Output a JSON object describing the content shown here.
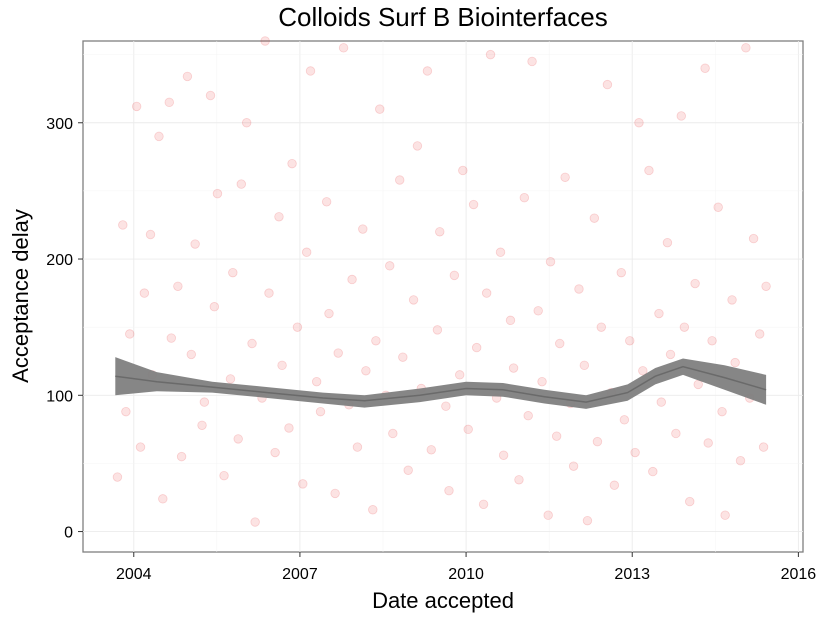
{
  "chart_data": {
    "type": "scatter",
    "title": "Colloids Surf B Biointerfaces",
    "xlabel": "Date accepted",
    "ylabel": "Acceptance delay",
    "x_ticks": [
      "2004",
      "2007",
      "2010",
      "2013",
      "2016"
    ],
    "y_ticks": [
      "0",
      "100",
      "200",
      "300"
    ],
    "xlim": [
      "2003-02-01",
      "2016-02-01"
    ],
    "ylim": [
      -15,
      360
    ],
    "grid": true,
    "point_color": "#e41a1c",
    "point_alpha": 0.12,
    "smooth_color": "#808080",
    "series": [
      {
        "name": "",
        "points": [
          [
            "2003-09-15",
            40
          ],
          [
            "2003-10-20",
            225
          ],
          [
            "2003-11-10",
            88
          ],
          [
            "2003-12-05",
            145
          ],
          [
            "2004-01-20",
            312
          ],
          [
            "2004-02-15",
            62
          ],
          [
            "2004-03-10",
            175
          ],
          [
            "2004-04-20",
            218
          ],
          [
            "2004-05-01",
            115
          ],
          [
            "2004-06-15",
            290
          ],
          [
            "2004-07-10",
            24
          ],
          [
            "2004-08-22",
            315
          ],
          [
            "2004-09-05",
            142
          ],
          [
            "2004-10-18",
            180
          ],
          [
            "2004-11-12",
            55
          ],
          [
            "2004-12-20",
            334
          ],
          [
            "2005-01-15",
            130
          ],
          [
            "2005-02-10",
            211
          ],
          [
            "2005-03-25",
            78
          ],
          [
            "2005-04-10",
            95
          ],
          [
            "2005-05-20",
            320
          ],
          [
            "2005-06-15",
            165
          ],
          [
            "2005-07-05",
            248
          ],
          [
            "2005-08-18",
            41
          ],
          [
            "2005-09-30",
            112
          ],
          [
            "2005-10-15",
            190
          ],
          [
            "2005-11-20",
            68
          ],
          [
            "2005-12-10",
            255
          ],
          [
            "2006-01-15",
            300
          ],
          [
            "2006-02-20",
            138
          ],
          [
            "2006-03-10",
            7
          ],
          [
            "2006-04-25",
            98
          ],
          [
            "2006-05-15",
            360
          ],
          [
            "2006-06-10",
            175
          ],
          [
            "2006-07-20",
            58
          ],
          [
            "2006-08-15",
            231
          ],
          [
            "2006-09-05",
            122
          ],
          [
            "2006-10-20",
            76
          ],
          [
            "2006-11-10",
            270
          ],
          [
            "2006-12-15",
            150
          ],
          [
            "2007-01-20",
            35
          ],
          [
            "2007-02-15",
            205
          ],
          [
            "2007-03-10",
            338
          ],
          [
            "2007-04-20",
            110
          ],
          [
            "2007-05-15",
            88
          ],
          [
            "2007-06-25",
            242
          ],
          [
            "2007-07-10",
            160
          ],
          [
            "2007-08-20",
            28
          ],
          [
            "2007-09-10",
            131
          ],
          [
            "2007-10-15",
            355
          ],
          [
            "2007-11-20",
            93
          ],
          [
            "2007-12-10",
            185
          ],
          [
            "2008-01-15",
            62
          ],
          [
            "2008-02-20",
            222
          ],
          [
            "2008-03-10",
            118
          ],
          [
            "2008-04-25",
            16
          ],
          [
            "2008-05-15",
            140
          ],
          [
            "2008-06-10",
            310
          ],
          [
            "2008-07-20",
            100
          ],
          [
            "2008-08-15",
            195
          ],
          [
            "2008-09-05",
            72
          ],
          [
            "2008-10-20",
            258
          ],
          [
            "2008-11-10",
            128
          ],
          [
            "2008-12-15",
            45
          ],
          [
            "2009-01-20",
            170
          ],
          [
            "2009-02-15",
            283
          ],
          [
            "2009-03-10",
            105
          ],
          [
            "2009-04-20",
            338
          ],
          [
            "2009-05-15",
            60
          ],
          [
            "2009-06-25",
            148
          ],
          [
            "2009-07-10",
            220
          ],
          [
            "2009-08-20",
            92
          ],
          [
            "2009-09-10",
            30
          ],
          [
            "2009-10-15",
            188
          ],
          [
            "2009-11-20",
            115
          ],
          [
            "2009-12-10",
            265
          ],
          [
            "2010-01-15",
            75
          ],
          [
            "2010-02-20",
            240
          ],
          [
            "2010-03-10",
            135
          ],
          [
            "2010-04-25",
            20
          ],
          [
            "2010-05-15",
            175
          ],
          [
            "2010-06-10",
            350
          ],
          [
            "2010-07-20",
            98
          ],
          [
            "2010-08-15",
            205
          ],
          [
            "2010-09-05",
            56
          ],
          [
            "2010-10-20",
            155
          ],
          [
            "2010-11-10",
            120
          ],
          [
            "2010-12-15",
            38
          ],
          [
            "2011-01-20",
            245
          ],
          [
            "2011-02-15",
            85
          ],
          [
            "2011-03-10",
            345
          ],
          [
            "2011-04-20",
            162
          ],
          [
            "2011-05-15",
            110
          ],
          [
            "2011-06-25",
            12
          ],
          [
            "2011-07-10",
            198
          ],
          [
            "2011-08-20",
            70
          ],
          [
            "2011-09-10",
            138
          ],
          [
            "2011-10-15",
            260
          ],
          [
            "2011-11-20",
            94
          ],
          [
            "2011-12-10",
            48
          ],
          [
            "2012-01-15",
            178
          ],
          [
            "2012-02-20",
            122
          ],
          [
            "2012-03-10",
            8
          ],
          [
            "2012-04-25",
            230
          ],
          [
            "2012-05-15",
            66
          ],
          [
            "2012-06-10",
            150
          ],
          [
            "2012-07-20",
            328
          ],
          [
            "2012-08-15",
            102
          ],
          [
            "2012-09-05",
            34
          ],
          [
            "2012-10-20",
            190
          ],
          [
            "2012-11-10",
            82
          ],
          [
            "2012-12-15",
            140
          ],
          [
            "2013-01-20",
            58
          ],
          [
            "2013-02-15",
            300
          ],
          [
            "2013-03-10",
            118
          ],
          [
            "2013-04-20",
            265
          ],
          [
            "2013-05-15",
            44
          ],
          [
            "2013-06-25",
            160
          ],
          [
            "2013-07-10",
            95
          ],
          [
            "2013-08-20",
            212
          ],
          [
            "2013-09-10",
            130
          ],
          [
            "2013-10-15",
            72
          ],
          [
            "2013-11-20",
            305
          ],
          [
            "2013-12-10",
            150
          ],
          [
            "2014-01-15",
            22
          ],
          [
            "2014-02-20",
            182
          ],
          [
            "2014-03-10",
            108
          ],
          [
            "2014-04-25",
            340
          ],
          [
            "2014-05-15",
            65
          ],
          [
            "2014-06-10",
            140
          ],
          [
            "2014-07-20",
            238
          ],
          [
            "2014-08-15",
            88
          ],
          [
            "2014-09-05",
            12
          ],
          [
            "2014-10-20",
            170
          ],
          [
            "2014-11-10",
            124
          ],
          [
            "2014-12-15",
            52
          ],
          [
            "2015-01-20",
            355
          ],
          [
            "2015-02-15",
            98
          ],
          [
            "2015-03-10",
            215
          ],
          [
            "2015-04-20",
            145
          ],
          [
            "2015-05-15",
            62
          ],
          [
            "2015-06-01",
            180
          ]
        ]
      }
    ],
    "smooth": {
      "x": [
        "2003-09-01",
        "2004-06-01",
        "2005-06-01",
        "2006-06-01",
        "2007-06-01",
        "2008-03-01",
        "2009-03-01",
        "2010-01-01",
        "2010-09-01",
        "2011-06-01",
        "2012-03-01",
        "2012-12-01",
        "2013-06-01",
        "2013-12-01",
        "2014-09-01",
        "2015-06-01"
      ],
      "y": [
        114,
        110,
        106,
        102,
        98,
        96,
        100,
        105,
        104,
        99,
        95,
        102,
        114,
        121,
        113,
        104
      ],
      "lower": [
        100,
        103,
        102,
        98,
        94,
        91,
        95,
        100,
        99,
        94,
        90,
        96,
        108,
        115,
        104,
        93
      ],
      "upper": [
        128,
        117,
        110,
        106,
        102,
        100,
        105,
        110,
        109,
        104,
        100,
        108,
        120,
        127,
        122,
        115
      ]
    }
  }
}
